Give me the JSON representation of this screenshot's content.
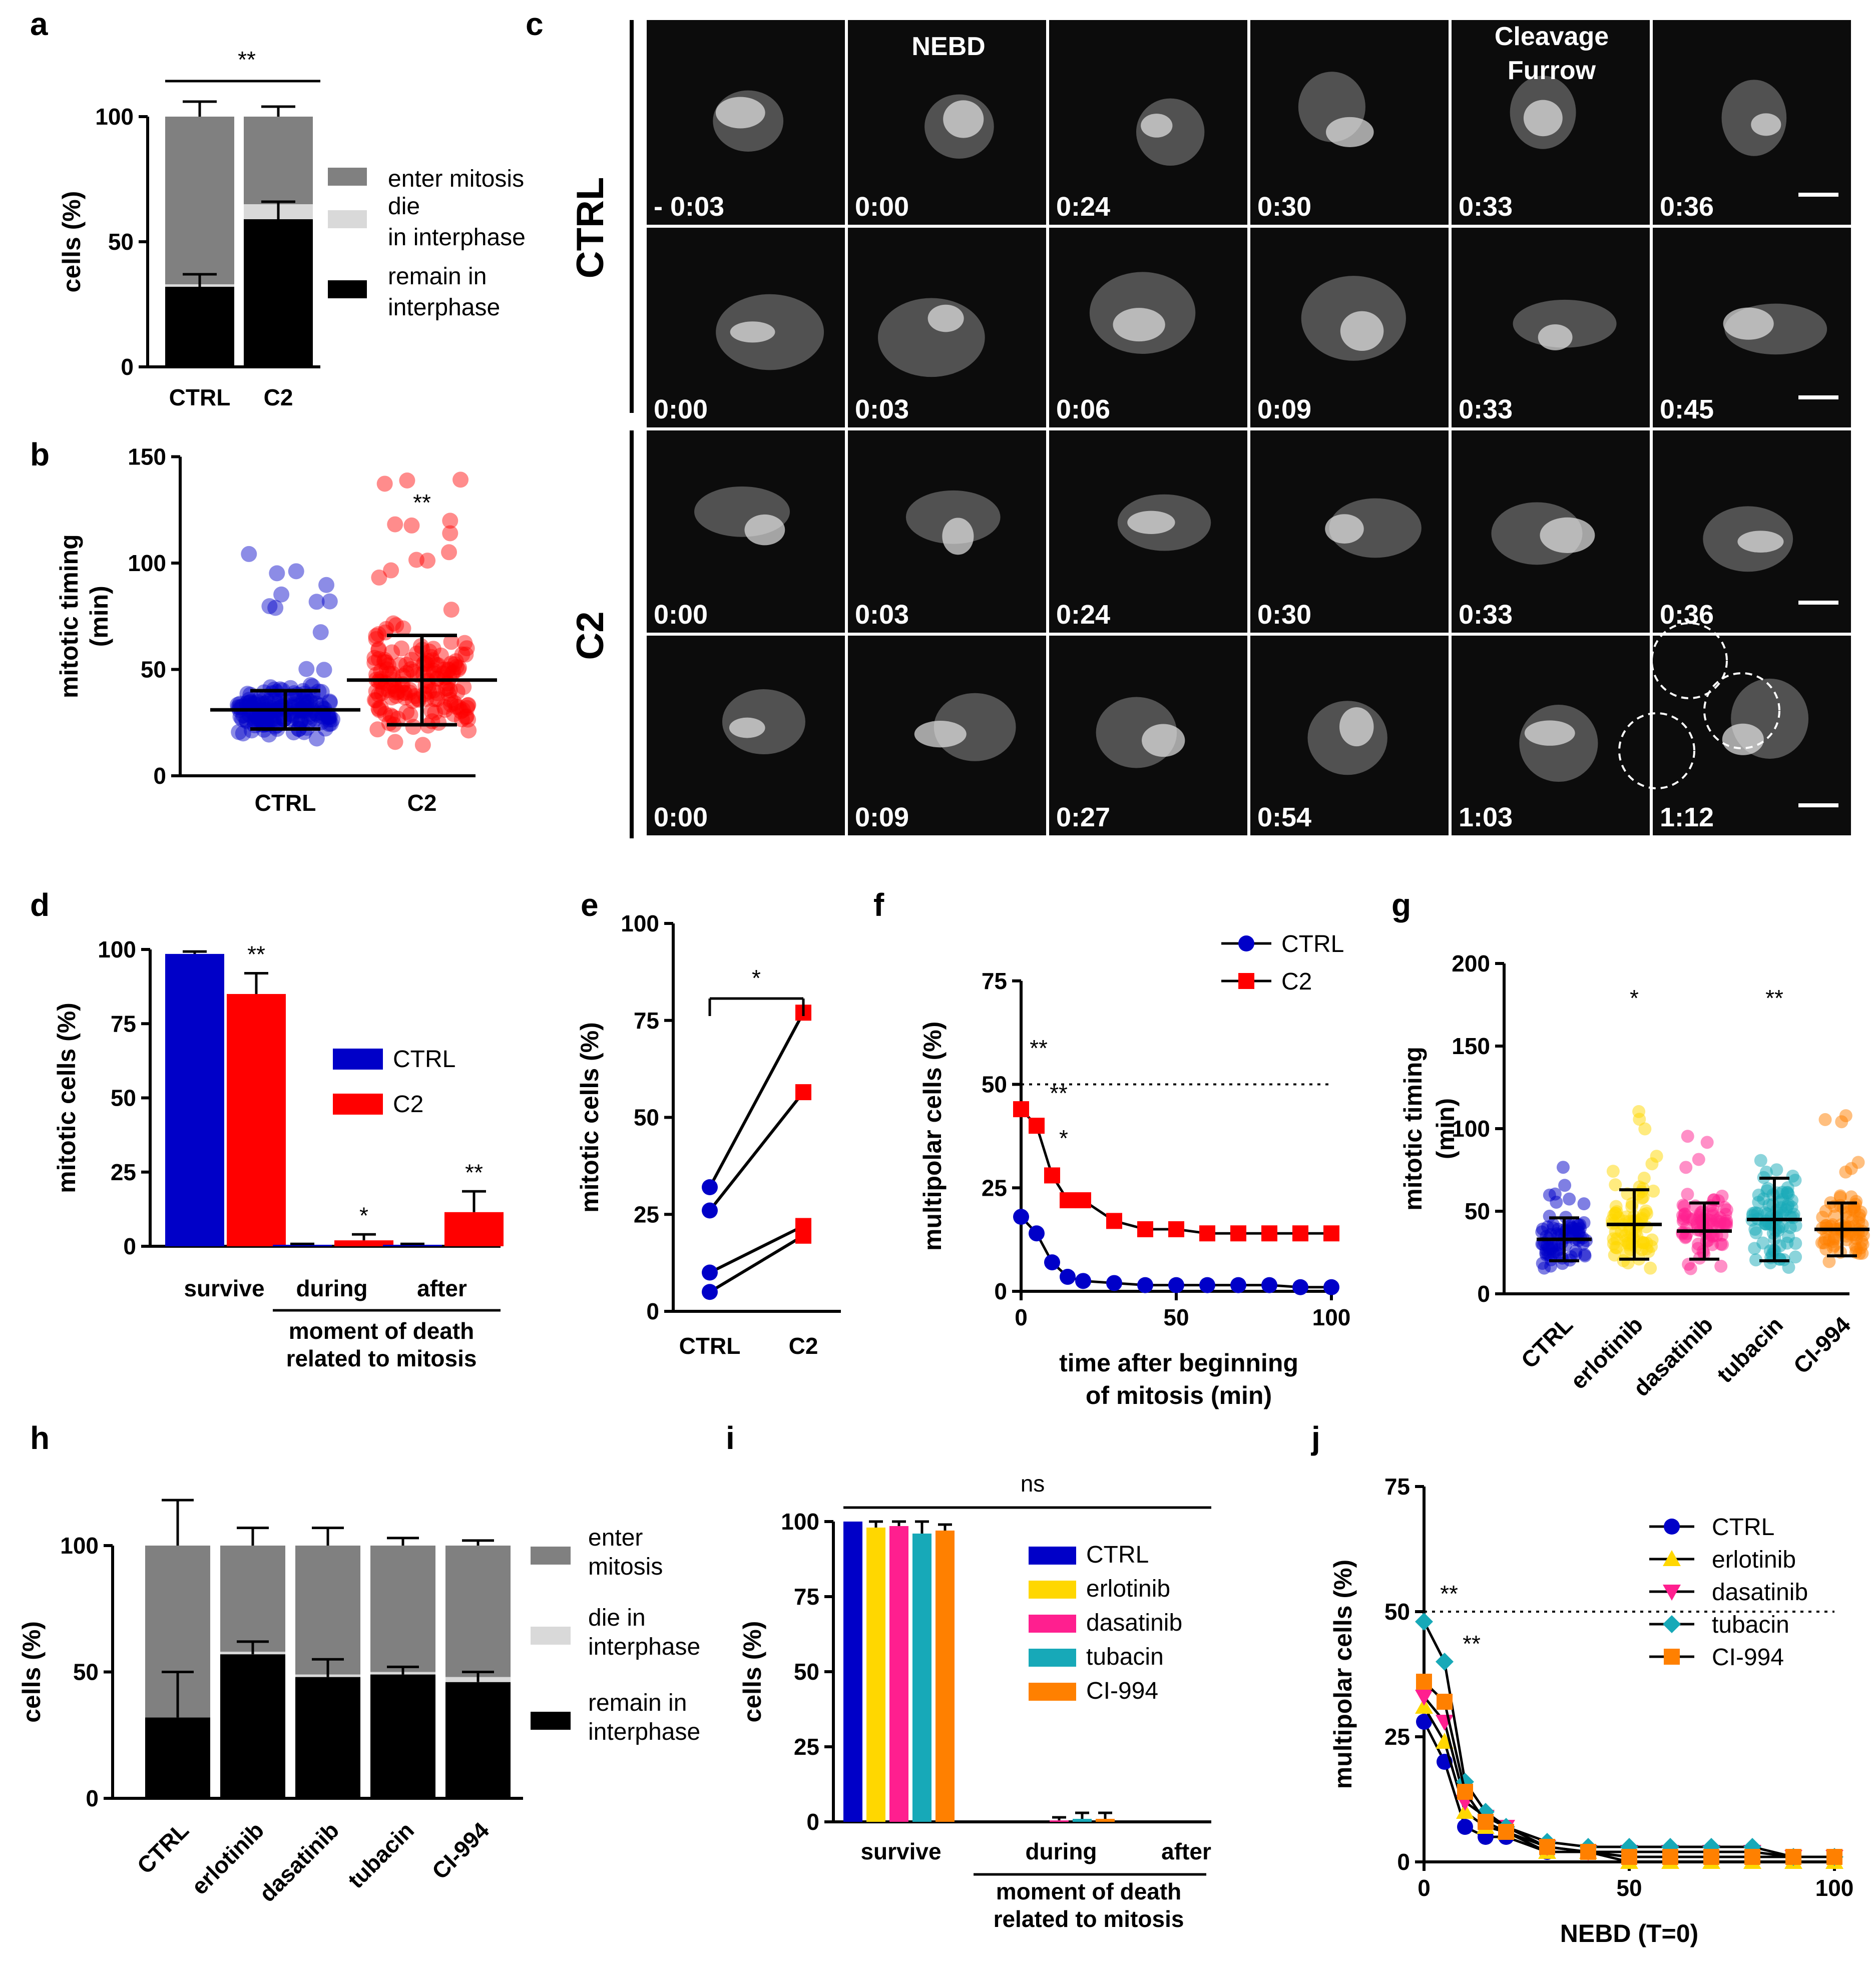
{
  "panel_labels": {
    "a": "a",
    "b": "b",
    "c": "c",
    "d": "d",
    "e": "e",
    "f": "f",
    "g": "g",
    "h": "h",
    "i": "i",
    "j": "j"
  },
  "colors": {
    "ctrl": "#0000c8",
    "c2": "#ff0000",
    "black": "#000000",
    "enter_mitosis": "#808080",
    "die_interphase": "#d9d9d9",
    "erlotinib": "#ffd700",
    "dasatinib": "#ff1f8f",
    "tubacin": "#17a9b8",
    "ci994": "#ff8000"
  },
  "chart_data": [
    {
      "id": "a",
      "type": "bar",
      "categories": [
        "CTRL",
        "C2"
      ],
      "series": [
        {
          "name": "remain in interphase",
          "values": [
            32,
            59
          ]
        },
        {
          "name": "die in interphase",
          "values": [
            1,
            6
          ]
        },
        {
          "name": "enter mitosis",
          "values": [
            67,
            35
          ]
        }
      ],
      "errors": {
        "remain": [
          5,
          7
        ],
        "die": [
          0,
          2
        ],
        "enter": [
          6,
          4
        ]
      },
      "legend": [
        "enter mitosis",
        "die in interphase",
        "remain in interphase"
      ],
      "ylabel": "cells (%)",
      "ylim": [
        0,
        120
      ],
      "yticks": [
        "0",
        "50",
        "100"
      ],
      "significance": "**"
    },
    {
      "id": "b",
      "type": "scatter",
      "categories": [
        "CTRL",
        "C2"
      ],
      "means": [
        31,
        45
      ],
      "sd": [
        9,
        21
      ],
      "ylabel": "mitotic timing (min)",
      "ylim": [
        0,
        150
      ],
      "yticks": [
        "0",
        "50",
        "100",
        "150"
      ],
      "significance": "**"
    },
    {
      "id": "c",
      "type": "table",
      "row_labels": [
        "CTRL",
        "C2"
      ],
      "header_labels": [
        "NEBD",
        "Cleavage Furrow"
      ],
      "rows": [
        [
          "- 0:03",
          "0:00",
          "0:24",
          "0:30",
          "0:33",
          "0:36"
        ],
        [
          "0:00",
          "0:03",
          "0:06",
          "0:09",
          "0:33",
          "0:45"
        ],
        [
          "0:00",
          "0:03",
          "0:24",
          "0:30",
          "0:33",
          "0:36"
        ],
        [
          "0:00",
          "0:09",
          "0:27",
          "0:54",
          "1:03",
          "1:12"
        ]
      ]
    },
    {
      "id": "d",
      "type": "bar",
      "categories": [
        "survive",
        "during",
        "after"
      ],
      "group_label": "moment of death related to mitosis",
      "series": [
        {
          "name": "CTRL",
          "values": [
            98.5,
            0.5,
            0.5
          ],
          "errors": [
            0.8,
            0.3,
            0.3
          ]
        },
        {
          "name": "C2",
          "values": [
            85,
            2,
            11.5
          ],
          "errors": [
            7,
            2,
            7
          ]
        }
      ],
      "ylabel": "mitotic cells (%)",
      "ylim": [
        0,
        100
      ],
      "yticks": [
        "0",
        "25",
        "50",
        "75",
        "100"
      ],
      "significance": [
        "**",
        "*",
        "**"
      ]
    },
    {
      "id": "e",
      "type": "line",
      "categories": [
        "CTRL",
        "C2"
      ],
      "pairs": [
        [
          32,
          77
        ],
        [
          26,
          56.5
        ],
        [
          10,
          22
        ],
        [
          5,
          19.5
        ]
      ],
      "ylabel": "mitotic cells (%)",
      "ylim": [
        0,
        100
      ],
      "yticks": [
        "0",
        "25",
        "50",
        "75",
        "100"
      ],
      "significance": "*"
    },
    {
      "id": "f",
      "type": "line",
      "series": [
        {
          "name": "CTRL",
          "x": [
            0,
            5,
            10,
            15,
            20,
            30,
            40,
            50,
            60,
            70,
            80,
            90,
            100
          ],
          "values": [
            18,
            14,
            7,
            3.5,
            2.5,
            2,
            1.5,
            1.5,
            1.5,
            1.5,
            1.5,
            1,
            1
          ]
        },
        {
          "name": "C2",
          "x": [
            0,
            5,
            10,
            15,
            20,
            30,
            40,
            50,
            60,
            70,
            80,
            90,
            100
          ],
          "values": [
            44,
            40,
            28,
            22,
            22,
            17,
            15,
            15,
            14,
            14,
            14,
            14,
            14
          ]
        }
      ],
      "xlabel": "time after beginning of mitosis (min)",
      "xlabel_lines": [
        "time after beginning",
        "of mitosis (min)"
      ],
      "ylabel": "multipolar cells (%)",
      "xlim": [
        0,
        100
      ],
      "ylim": [
        0,
        75
      ],
      "xticks": [
        "0",
        "50",
        "100"
      ],
      "yticks": [
        "0",
        "25",
        "50",
        "75"
      ],
      "reference_line": 50,
      "significance": [
        "**",
        "**",
        "*"
      ]
    },
    {
      "id": "g",
      "type": "scatter",
      "categories": [
        "CTRL",
        "erlotinib",
        "dasatinib",
        "tubacin",
        "CI-994"
      ],
      "means": [
        33,
        42,
        38,
        45,
        39
      ],
      "sd": [
        13,
        21,
        17,
        25,
        16
      ],
      "ylabel": "mitotic timing (min)",
      "ylim": [
        0,
        200
      ],
      "yticks": [
        "0",
        "50",
        "100",
        "150",
        "200"
      ],
      "significance": [
        "",
        "*",
        "",
        "**",
        ""
      ]
    },
    {
      "id": "h",
      "type": "bar",
      "categories": [
        "CTRL",
        "erlotinib",
        "dasatinib",
        "tubacin",
        "CI-994"
      ],
      "series": [
        {
          "name": "remain in interphase",
          "values": [
            32,
            57,
            48,
            49,
            46
          ]
        },
        {
          "name": "die in interphase",
          "values": [
            0,
            1,
            1,
            1,
            2
          ]
        },
        {
          "name": "enter mitosis",
          "values": [
            68,
            42,
            51,
            50,
            52
          ]
        }
      ],
      "errors": {
        "remain": [
          18,
          5,
          7,
          3,
          4
        ],
        "enter": [
          18,
          7,
          7,
          3,
          2
        ]
      },
      "legend": [
        "enter mitosis",
        "die in interphase",
        "remain in interphase"
      ],
      "ylabel": "cells (%)",
      "ylim": [
        0,
        120
      ],
      "yticks": [
        "0",
        "50",
        "100"
      ]
    },
    {
      "id": "i",
      "type": "bar",
      "categories": [
        "survive",
        "during",
        "after"
      ],
      "group_label": "moment of death related to mitosis",
      "series": [
        {
          "name": "CTRL",
          "values": [
            100,
            0,
            0
          ],
          "errors": [
            0,
            0,
            0
          ]
        },
        {
          "name": "erlotinib",
          "values": [
            98,
            0,
            0
          ],
          "errors": [
            2,
            0,
            0
          ]
        },
        {
          "name": "dasatinib",
          "values": [
            98.5,
            0.5,
            0
          ],
          "errors": [
            1.5,
            1,
            0
          ]
        },
        {
          "name": "tubacin",
          "values": [
            96,
            1,
            0
          ],
          "errors": [
            4,
            2,
            0
          ]
        },
        {
          "name": "CI-994",
          "values": [
            97,
            1,
            0
          ],
          "errors": [
            2,
            2,
            0
          ]
        }
      ],
      "ylabel": "cells (%)",
      "ylim": [
        0,
        100
      ],
      "yticks": [
        "0",
        "25",
        "50",
        "75",
        "100"
      ],
      "significance": "ns"
    },
    {
      "id": "j",
      "type": "line",
      "series": [
        {
          "name": "CTRL",
          "x": [
            0,
            5,
            10,
            15,
            20,
            30,
            40,
            50,
            60,
            70,
            80,
            90,
            100
          ],
          "values": [
            28,
            20,
            7,
            5,
            5,
            2,
            2,
            1,
            1,
            1,
            1,
            1,
            1
          ]
        },
        {
          "name": "erlotinib",
          "x": [
            0,
            5,
            10,
            15,
            20,
            30,
            40,
            50,
            60,
            70,
            80,
            90,
            100
          ],
          "values": [
            31,
            24,
            10,
            7,
            6,
            2,
            2,
            0,
            0,
            0,
            0,
            0,
            0
          ]
        },
        {
          "name": "dasatinib",
          "x": [
            0,
            5,
            10,
            15,
            20,
            30,
            40,
            50,
            60,
            70,
            80,
            90,
            100
          ],
          "values": [
            33,
            28,
            12,
            9,
            7,
            3,
            2,
            2,
            2,
            2,
            2,
            1,
            1
          ]
        },
        {
          "name": "tubacin",
          "x": [
            0,
            5,
            10,
            15,
            20,
            30,
            40,
            50,
            60,
            70,
            80,
            90,
            100
          ],
          "values": [
            48,
            40,
            16,
            10,
            7,
            4,
            3,
            3,
            3,
            3,
            3,
            1,
            1
          ]
        },
        {
          "name": "CI-994",
          "x": [
            0,
            5,
            10,
            15,
            20,
            30,
            40,
            50,
            60,
            70,
            80,
            90,
            100
          ],
          "values": [
            36,
            32,
            14,
            8,
            6,
            3,
            2,
            1,
            1,
            1,
            1,
            1,
            1
          ]
        }
      ],
      "xlabel": "NEBD (T=0)",
      "ylabel": "multipolar cells (%)",
      "xlim": [
        0,
        100
      ],
      "ylim": [
        0,
        75
      ],
      "xticks": [
        "0",
        "50",
        "100"
      ],
      "yticks": [
        "0",
        "25",
        "50",
        "75"
      ],
      "reference_line": 50,
      "significance": [
        "**",
        "**"
      ]
    }
  ]
}
